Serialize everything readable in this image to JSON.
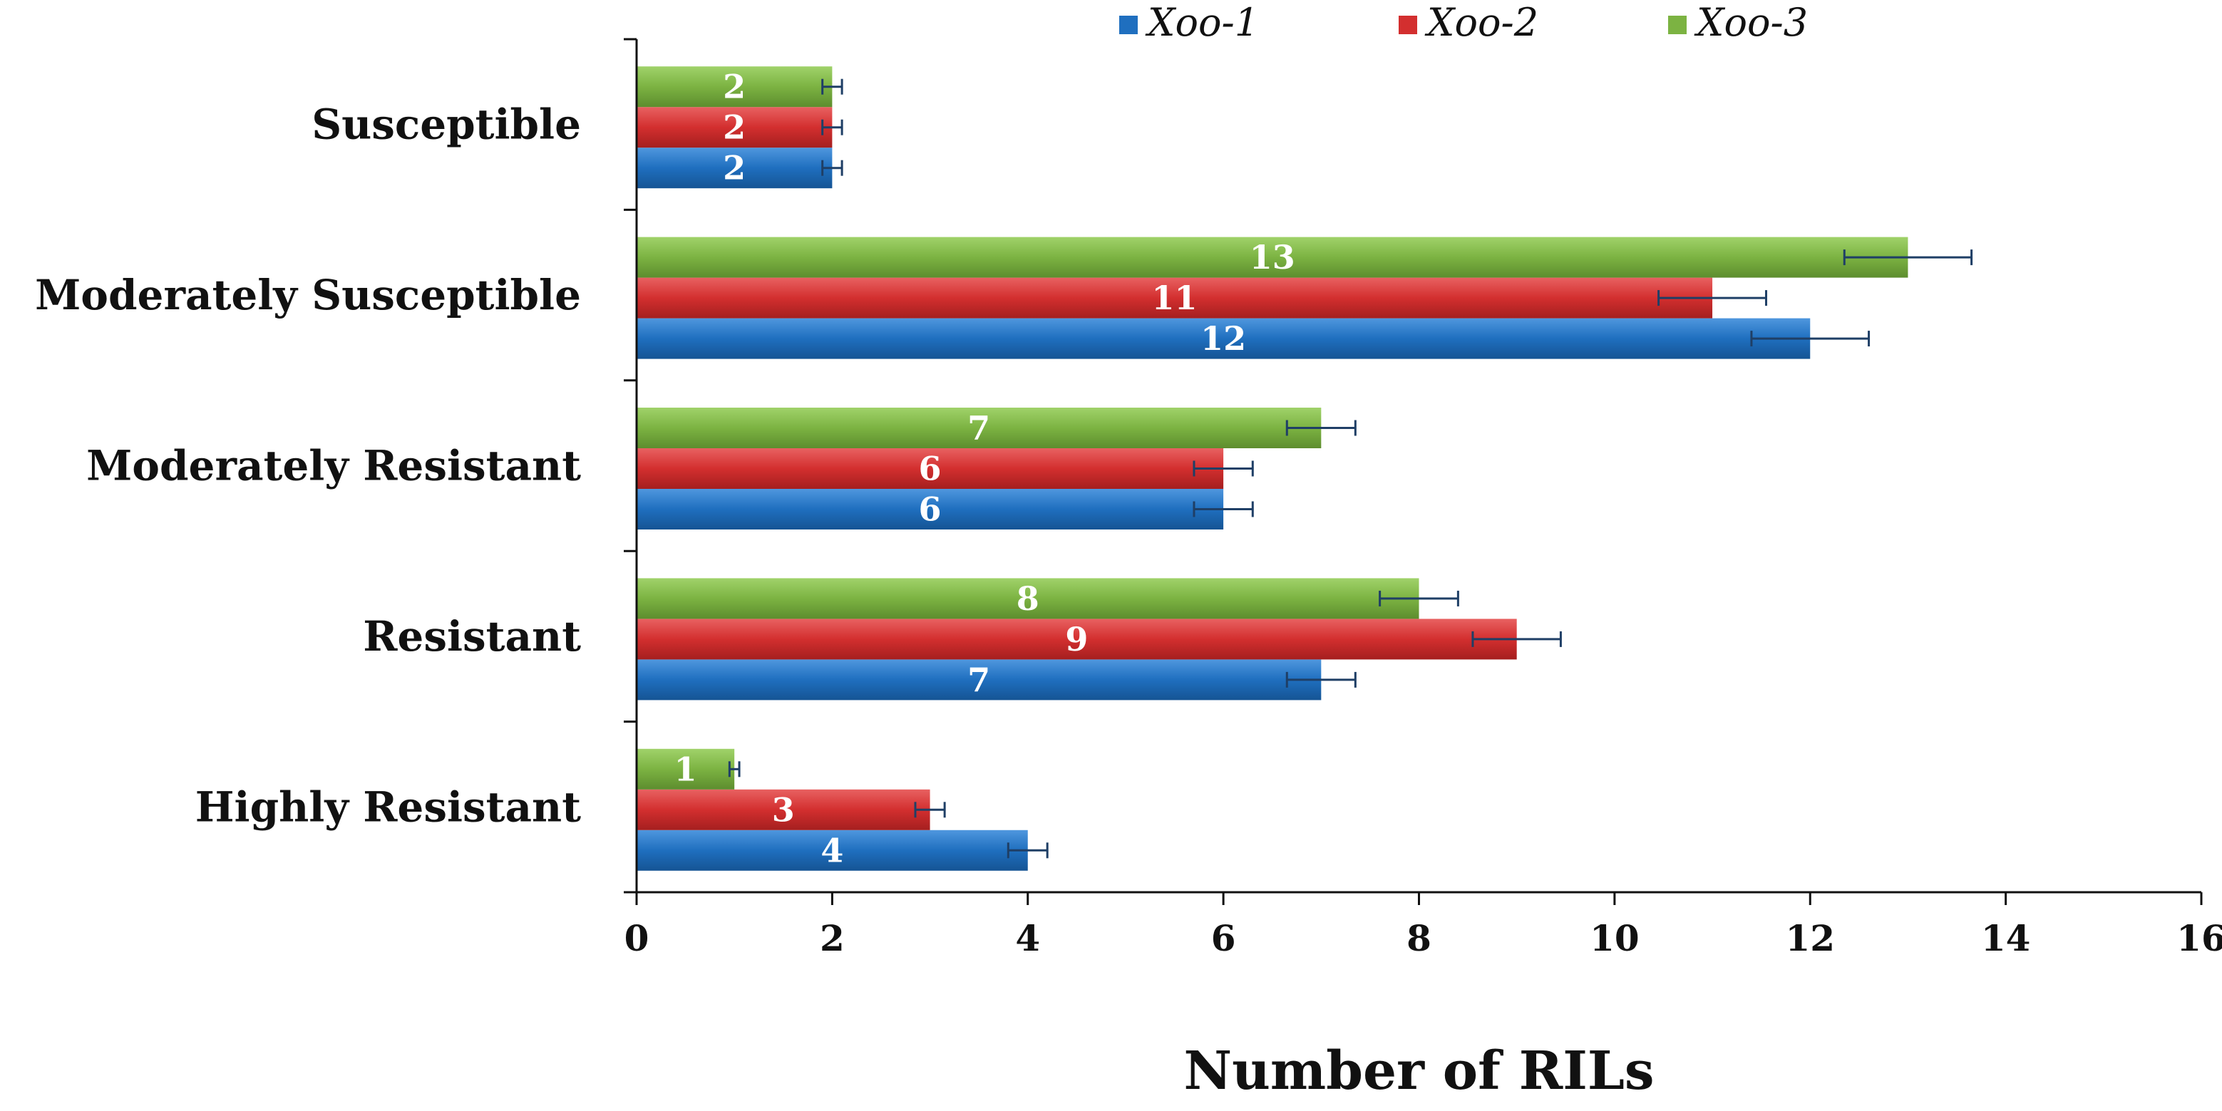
{
  "chart_data": {
    "type": "bar",
    "orientation": "horizontal",
    "title": "",
    "xlabel": "Number of RILs",
    "ylabel": "",
    "xlim": [
      0,
      16
    ],
    "x_ticks": [
      0,
      2,
      4,
      6,
      8,
      10,
      12,
      14,
      16
    ],
    "categories": [
      "Susceptible",
      "Moderately Susceptible",
      "Moderately Resistant",
      "Resistant",
      "Highly Resistant"
    ],
    "series": [
      {
        "name": "Xoo-1",
        "color": "#1f6fbf",
        "values": [
          2,
          12,
          6,
          7,
          4
        ],
        "errors": [
          0.1,
          0.6,
          0.3,
          0.35,
          0.2
        ]
      },
      {
        "name": "Xoo-2",
        "color": "#d32f2f",
        "values": [
          2,
          11,
          6,
          9,
          3
        ],
        "errors": [
          0.1,
          0.55,
          0.3,
          0.45,
          0.15
        ]
      },
      {
        "name": "Xoo-3",
        "color": "#7cb342",
        "values": [
          2,
          13,
          7,
          8,
          1
        ],
        "errors": [
          0.1,
          0.65,
          0.35,
          0.4,
          0.05
        ]
      }
    ],
    "legend_position": "top-right",
    "grid": false
  }
}
